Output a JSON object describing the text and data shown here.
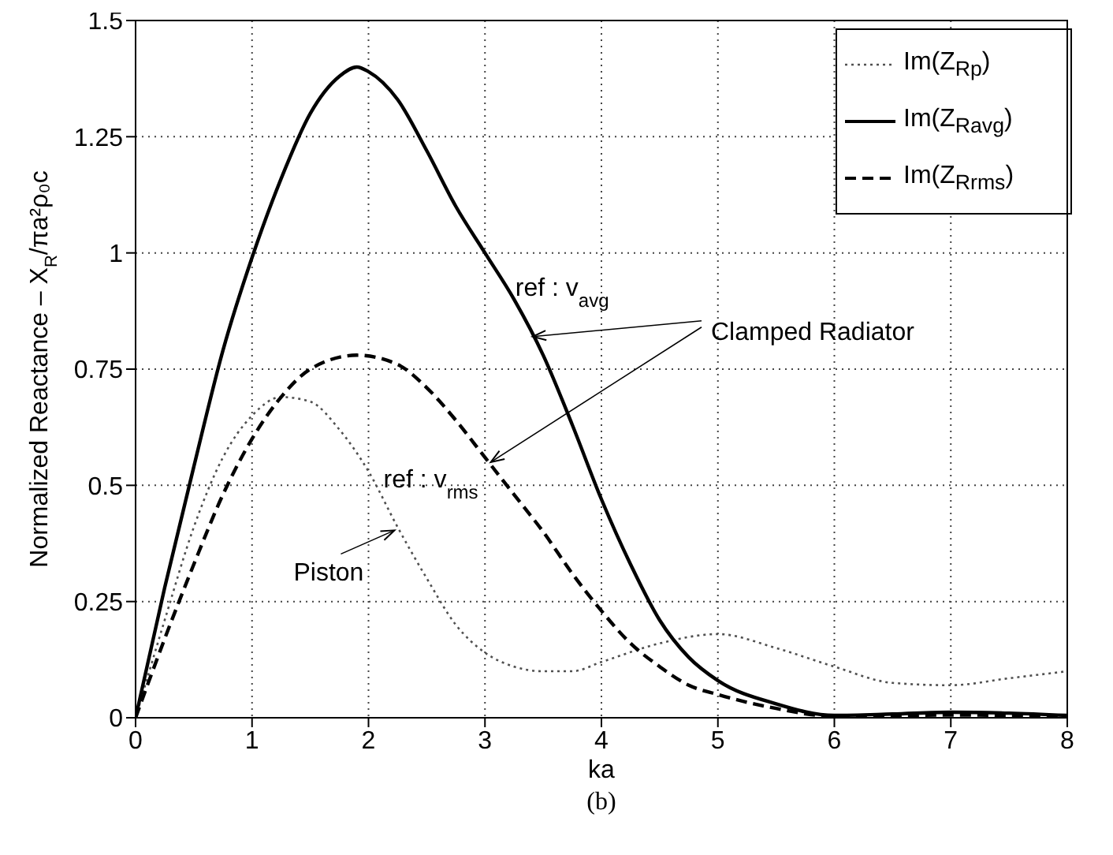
{
  "chart_data": {
    "type": "line",
    "xlabel": "ka",
    "ylabel": "Normalized Reactance – X$_{R}$/πa²ρ₀c",
    "xlim": [
      0,
      8
    ],
    "xticks": [
      0,
      1,
      2,
      3,
      4,
      5,
      6,
      7,
      8
    ],
    "ylim": [
      0,
      1.5
    ],
    "yticks": [
      0,
      0.25,
      0.5,
      0.75,
      1,
      1.25,
      1.5
    ],
    "grid": true,
    "legend": "top right",
    "series": [
      {
        "name": "Im(Z$_{Rp}$)",
        "color": "#505050",
        "line_style": "dotted",
        "x": [
          0,
          0.25,
          0.5,
          0.75,
          1,
          1.25,
          1.5,
          1.75,
          2,
          2.25,
          2.5,
          2.75,
          3,
          3.25,
          3.5,
          3.75,
          4,
          4.5,
          5,
          5.5,
          6,
          6.5,
          7,
          7.5,
          8
        ],
        "values": [
          0,
          0.21,
          0.41,
          0.56,
          0.65,
          0.69,
          0.68,
          0.62,
          0.53,
          0.41,
          0.3,
          0.2,
          0.14,
          0.11,
          0.1,
          0.1,
          0.12,
          0.16,
          0.18,
          0.15,
          0.11,
          0.075,
          0.07,
          0.085,
          0.1
        ]
      },
      {
        "name": "Im(Z$_{Ravg}$)",
        "color": "#000000",
        "line_style": "solid",
        "x": [
          0,
          0.25,
          0.5,
          0.75,
          1,
          1.25,
          1.5,
          1.75,
          1.9,
          2,
          2.25,
          2.5,
          2.75,
          3,
          3.25,
          3.5,
          3.75,
          4,
          4.25,
          4.5,
          4.75,
          5,
          5.5,
          6,
          6.5,
          7,
          7.5,
          8
        ],
        "values": [
          0,
          0.28,
          0.54,
          0.79,
          0.99,
          1.16,
          1.3,
          1.38,
          1.4,
          1.39,
          1.33,
          1.22,
          1.1,
          1.0,
          0.9,
          0.78,
          0.63,
          0.47,
          0.33,
          0.21,
          0.13,
          0.08,
          0.03,
          0.005,
          0.008,
          0.012,
          0.01,
          0.005
        ]
      },
      {
        "name": "Im(Z$_{Rrms}$)",
        "color": "#000000",
        "line_style": "dashed",
        "x": [
          0,
          0.25,
          0.5,
          0.75,
          1,
          1.25,
          1.5,
          1.9,
          2.25,
          2.5,
          2.75,
          3,
          3.25,
          3.5,
          3.75,
          4,
          4.25,
          4.5,
          4.75,
          5,
          5.5,
          6,
          7,
          8
        ],
        "values": [
          0,
          0.17,
          0.33,
          0.48,
          0.6,
          0.69,
          0.75,
          0.78,
          0.76,
          0.71,
          0.64,
          0.56,
          0.48,
          0.4,
          0.31,
          0.23,
          0.16,
          0.11,
          0.07,
          0.05,
          0.02,
          0.003,
          0.006,
          0.003
        ]
      }
    ],
    "annotations": [
      {
        "text": "ref : v$_{avg}$",
        "x": 3.41,
        "y": 0.82
      },
      {
        "text": "ref : v$_{rms}$",
        "x": 3.05,
        "y": 0.55
      },
      {
        "text": "Clamped Radiator",
        "x": 3.41,
        "y": 0.82
      },
      {
        "text": "Piston",
        "x": 2.25,
        "y": 0.41
      },
      "(b)"
    ]
  }
}
